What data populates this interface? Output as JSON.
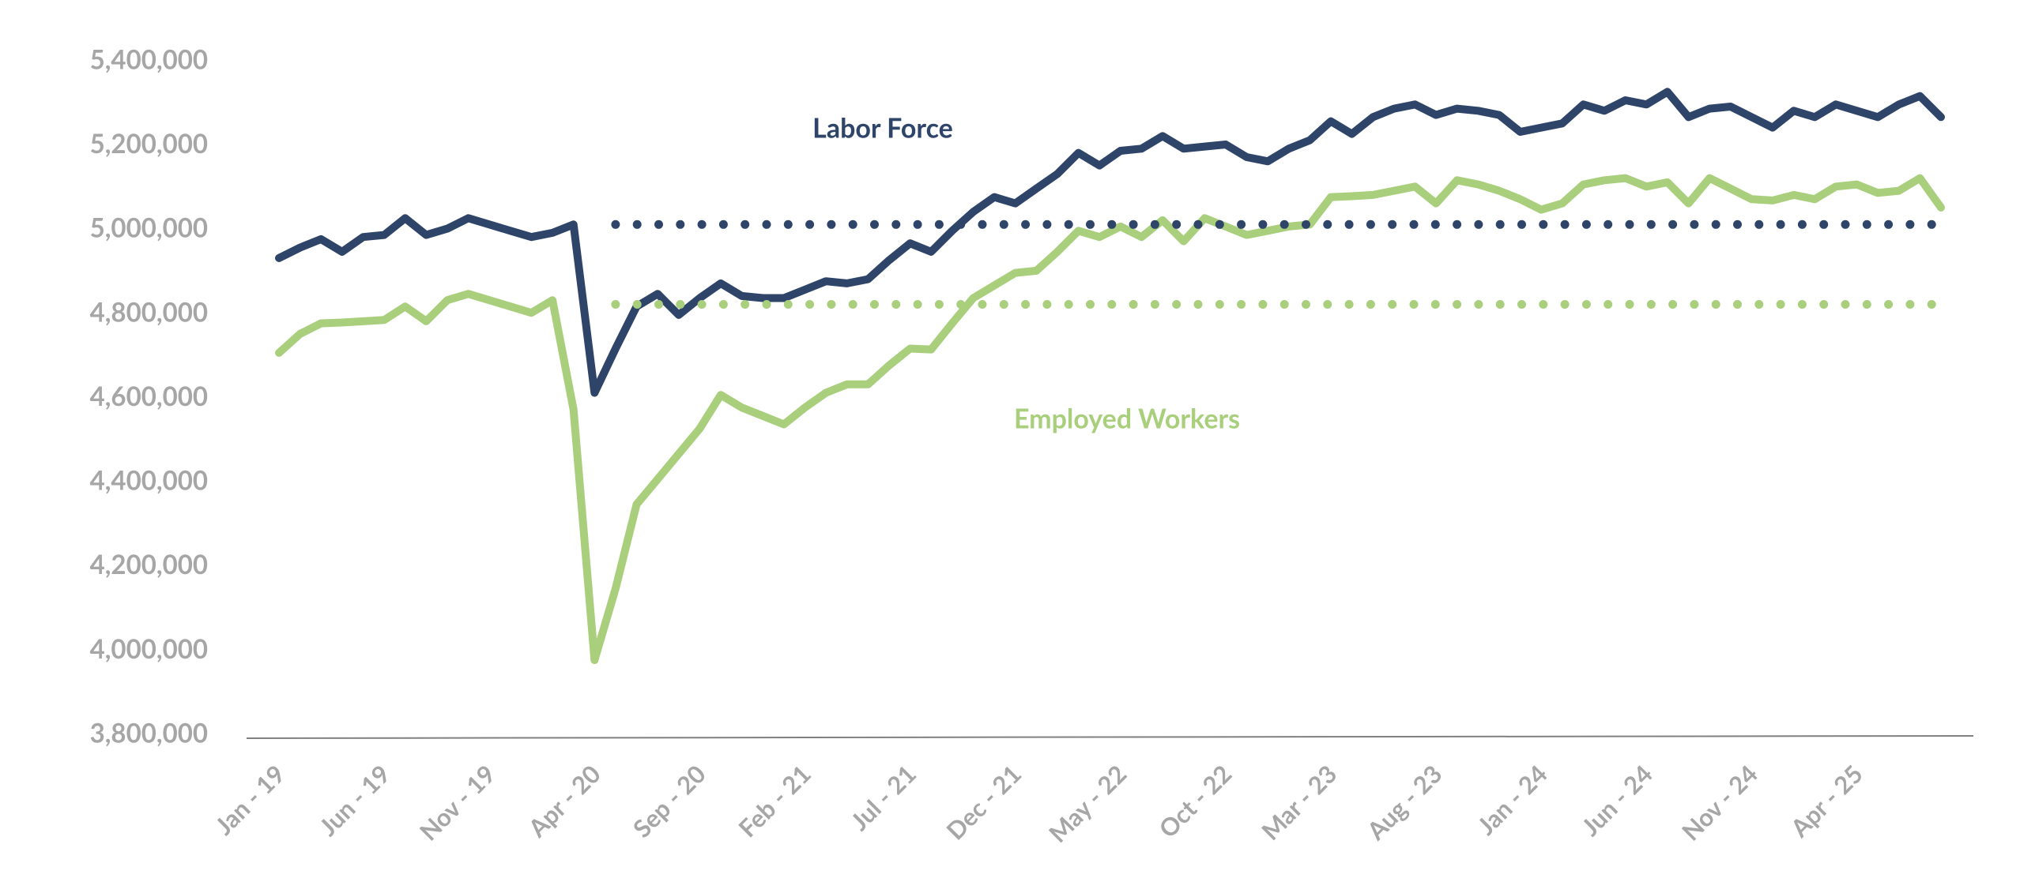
{
  "chart_data": {
    "type": "line",
    "categories": [
      "Jan - 19",
      null,
      null,
      null,
      null,
      "Jun - 19",
      null,
      null,
      null,
      null,
      "Nov - 19",
      null,
      null,
      null,
      null,
      "Apr - 20",
      null,
      null,
      null,
      null,
      "Sep - 20",
      null,
      null,
      null,
      null,
      "Feb - 21",
      null,
      null,
      null,
      null,
      "Jul - 21",
      null,
      null,
      null,
      null,
      "Dec - 21",
      null,
      null,
      null,
      null,
      "May - 22",
      null,
      null,
      null,
      null,
      "Oct - 22",
      null,
      null,
      null,
      null,
      "Mar - 23",
      null,
      null,
      null,
      null,
      "Aug - 23",
      null,
      null,
      null,
      null,
      "Jan - 24",
      null,
      null,
      null,
      null,
      "Jun - 24",
      null,
      null,
      null,
      null,
      "Nov - 24",
      null,
      null,
      null,
      null,
      "Apr - 25",
      null,
      null,
      null,
      null
    ],
    "series": [
      {
        "color": "#2e4468",
        "style": "solid",
        "values": [
          4935000,
          4960000,
          4980000,
          4950000,
          4985000,
          4990000,
          5030000,
          4990000,
          5005000,
          5030000,
          5015000,
          5000000,
          4985000,
          4995000,
          5015000,
          4615000,
          4720000,
          4820000,
          4850000,
          4800000,
          4840000,
          4875000,
          4845000,
          4840000,
          4840000,
          4860000,
          4880000,
          4875000,
          4885000,
          4930000,
          4970000,
          4950000,
          5000000,
          5045000,
          5080000,
          5065000,
          5100000,
          5135000,
          5185000,
          5155000,
          5190000,
          5195000,
          5225000,
          5195000,
          5200000,
          5205000,
          5175000,
          5165000,
          5195000,
          5215000,
          5260000,
          5230000,
          5270000,
          5290000,
          5300000,
          5275000,
          5290000,
          5285000,
          5275000,
          5235000,
          5245000,
          5255000,
          5300000,
          5285000,
          5310000,
          5300000,
          5330000,
          5270000,
          5290000,
          5295000,
          5270000,
          5245000,
          5285000,
          5270000,
          5300000,
          5285000,
          5270000,
          5300000,
          5320000,
          5270000
        ]
      },
      {
        "color": "#a9cf7d",
        "style": "solid",
        "values": [
          4710000,
          4755000,
          4780000,
          4782000,
          4785000,
          4788000,
          4820000,
          4785000,
          4835000,
          4850000,
          4835000,
          4820000,
          4805000,
          4835000,
          4575000,
          3980000,
          4150000,
          4350000,
          4410000,
          4470000,
          4530000,
          4610000,
          4580000,
          4560000,
          4540000,
          4580000,
          4615000,
          4635000,
          4635000,
          4680000,
          4720000,
          4718000,
          4780000,
          4840000,
          4870000,
          4900000,
          4905000,
          4950000,
          5000000,
          4985000,
          5010000,
          4985000,
          5025000,
          4975000,
          5030000,
          5010000,
          4990000,
          5000000,
          5010000,
          5015000,
          5080000,
          5082000,
          5085000,
          5095000,
          5105000,
          5065000,
          5120000,
          5110000,
          5095000,
          5075000,
          5050000,
          5065000,
          5110000,
          5120000,
          5125000,
          5105000,
          5115000,
          5065000,
          5125000,
          5100000,
          5075000,
          5072000,
          5085000,
          5075000,
          5105000,
          5110000,
          5090000,
          5095000,
          5125000,
          5055000
        ]
      },
      {
        "color": "#2e4468",
        "style": "dotted",
        "values": [
          null,
          null,
          null,
          null,
          null,
          null,
          null,
          null,
          null,
          null,
          null,
          null,
          null,
          null,
          null,
          null,
          5015000,
          5015000,
          5015000,
          5015000,
          5015000,
          5015000,
          5015000,
          5015000,
          5015000,
          5015000,
          5015000,
          5015000,
          5015000,
          5015000,
          5015000,
          5015000,
          5015000,
          5015000,
          5015000,
          5015000,
          5015000,
          5015000,
          5015000,
          5015000,
          5015000,
          5015000,
          5015000,
          5015000,
          5015000,
          5015000,
          5015000,
          5015000,
          5015000,
          5015000,
          5015000,
          5015000,
          5015000,
          5015000,
          5015000,
          5015000,
          5015000,
          5015000,
          5015000,
          5015000,
          5015000,
          5015000,
          5015000,
          5015000,
          5015000,
          5015000,
          5015000,
          5015000,
          5015000,
          5015000,
          5015000,
          5015000,
          5015000,
          5015000,
          5015000,
          5015000,
          5015000,
          5015000,
          5015000,
          5015000
        ]
      },
      {
        "color": "#a9cf7d",
        "style": "dotted",
        "values": [
          null,
          null,
          null,
          null,
          null,
          null,
          null,
          null,
          null,
          null,
          null,
          null,
          null,
          null,
          null,
          null,
          4825000,
          4825000,
          4825000,
          4825000,
          4825000,
          4825000,
          4825000,
          4825000,
          4825000,
          4825000,
          4825000,
          4825000,
          4825000,
          4825000,
          4825000,
          4825000,
          4825000,
          4825000,
          4825000,
          4825000,
          4825000,
          4825000,
          4825000,
          4825000,
          4825000,
          4825000,
          4825000,
          4825000,
          4825000,
          4825000,
          4825000,
          4825000,
          4825000,
          4825000,
          4825000,
          4825000,
          4825000,
          4825000,
          4825000,
          4825000,
          4825000,
          4825000,
          4825000,
          4825000,
          4825000,
          4825000,
          4825000,
          4825000,
          4825000,
          4825000,
          4825000,
          4825000,
          4825000,
          4825000,
          4825000,
          4825000,
          4825000,
          4825000,
          4825000,
          4825000,
          4825000,
          4825000,
          4825000,
          4825000
        ]
      }
    ],
    "annotations": [
      {
        "text": "Labor Force",
        "color": "#2e4468"
      },
      {
        "text": "Employed Workers",
        "color": "#a9cf7d"
      }
    ],
    "ylim": [
      3800000,
      5400000
    ],
    "yticks": [
      {
        "value": 3800000,
        "label": "3,800,000"
      },
      {
        "value": 4000000,
        "label": "4,000,000"
      },
      {
        "value": 4200000,
        "label": "4,200,000"
      },
      {
        "value": 4400000,
        "label": "4,400,000"
      },
      {
        "value": 4600000,
        "label": "4,600,000"
      },
      {
        "value": 4800000,
        "label": "4,800,000"
      },
      {
        "value": 5000000,
        "label": "5,000,000"
      },
      {
        "value": 5200000,
        "label": "5,200,000"
      },
      {
        "value": 5400000,
        "label": "5,400,000"
      }
    ],
    "grid": false
  }
}
